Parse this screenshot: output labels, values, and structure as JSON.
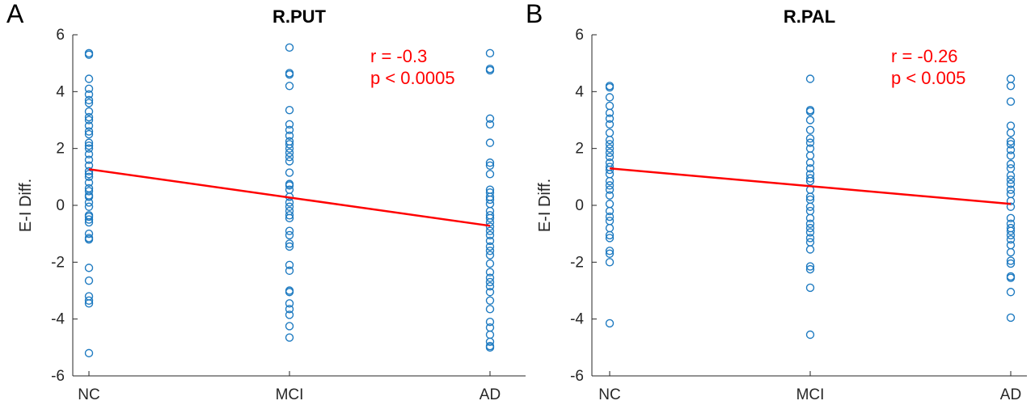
{
  "colors": {
    "marker": "#1f7bc1",
    "fit": "#ff0000",
    "stat": "#ff0000",
    "axis": "#262626"
  },
  "chart_data": [
    {
      "type": "scatter",
      "panel_label": "A",
      "title": "R.PUT",
      "ylabel": "E-I Diff.",
      "xlabel": "",
      "categories": [
        "NC",
        "MCI",
        "AD"
      ],
      "ylim": [
        -6,
        6
      ],
      "yticks": [
        -6,
        -4,
        -2,
        0,
        2,
        4,
        6
      ],
      "grid": false,
      "annotation": {
        "r": "r = -0.3",
        "p": "p < 0.0005"
      },
      "fit_line": {
        "from": [
          0,
          1.27
        ],
        "to": [
          2,
          -0.72
        ]
      },
      "series": [
        {
          "category": "NC",
          "values": [
            5.35,
            5.3,
            4.45,
            4.1,
            3.9,
            3.7,
            3.6,
            3.3,
            3.1,
            3.0,
            2.8,
            2.6,
            2.5,
            2.2,
            2.1,
            2.0,
            1.8,
            1.6,
            1.4,
            1.2,
            1.1,
            1.0,
            0.8,
            0.6,
            0.5,
            0.35,
            0.3,
            0.1,
            -0.05,
            -0.35,
            -0.4,
            -0.5,
            -0.6,
            -1.0,
            -1.15,
            -1.2,
            -2.2,
            -2.65,
            -3.2,
            -3.35,
            -3.45,
            -5.2
          ]
        },
        {
          "category": "MCI",
          "values": [
            5.55,
            4.65,
            4.6,
            4.2,
            3.35,
            2.85,
            2.65,
            2.45,
            2.25,
            2.15,
            2.0,
            1.85,
            1.7,
            1.55,
            1.15,
            0.75,
            0.7,
            0.55,
            0.3,
            0.1,
            -0.05,
            -0.2,
            -0.35,
            -0.45,
            -0.9,
            -1.05,
            -1.35,
            -1.45,
            -2.1,
            -2.3,
            -3.0,
            -3.05,
            -3.45,
            -3.65,
            -3.85,
            -4.25,
            -4.65
          ]
        },
        {
          "category": "AD",
          "values": [
            5.35,
            4.8,
            4.75,
            3.05,
            2.85,
            2.2,
            1.5,
            1.4,
            1.1,
            0.55,
            0.45,
            0.3,
            0.2,
            0.05,
            -0.2,
            -0.35,
            -0.45,
            -0.6,
            -0.75,
            -0.9,
            -1.05,
            -1.25,
            -1.45,
            -1.6,
            -1.75,
            -2.05,
            -2.35,
            -2.55,
            -2.7,
            -2.85,
            -3.05,
            -3.35,
            -3.65,
            -4.1,
            -4.3,
            -4.55,
            -4.8,
            -4.95,
            -5.0
          ]
        }
      ]
    },
    {
      "type": "scatter",
      "panel_label": "B",
      "title": "R.PAL",
      "ylabel": "E-I Diff.",
      "xlabel": "",
      "categories": [
        "NC",
        "MCI",
        "AD"
      ],
      "ylim": [
        -6,
        6
      ],
      "yticks": [
        -6,
        -4,
        -2,
        0,
        2,
        4,
        6
      ],
      "grid": false,
      "annotation": {
        "r": "r = -0.26",
        "p": "p < 0.005"
      },
      "fit_line": {
        "from": [
          0,
          1.3
        ],
        "to": [
          2,
          0.05
        ]
      },
      "series": [
        {
          "category": "NC",
          "values": [
            4.2,
            4.15,
            3.8,
            3.5,
            3.25,
            3.05,
            2.85,
            2.55,
            2.3,
            2.15,
            2.0,
            1.85,
            1.7,
            1.5,
            1.35,
            1.25,
            1.1,
            0.85,
            0.7,
            0.55,
            0.35,
            0.05,
            -0.2,
            -0.4,
            -0.55,
            -0.8,
            -1.05,
            -1.15,
            -1.6,
            -1.7,
            -2.0,
            -4.15
          ]
        },
        {
          "category": "MCI",
          "values": [
            4.45,
            3.35,
            3.3,
            3.0,
            2.65,
            2.35,
            2.2,
            2.0,
            1.75,
            1.5,
            1.3,
            1.1,
            0.95,
            0.85,
            0.55,
            0.3,
            0.2,
            -0.05,
            -0.2,
            -0.45,
            -0.65,
            -0.8,
            -0.95,
            -1.15,
            -1.3,
            -1.55,
            -2.15,
            -2.25,
            -2.9,
            -4.55
          ]
        },
        {
          "category": "AD",
          "values": [
            4.45,
            4.2,
            3.65,
            2.8,
            2.55,
            2.25,
            2.15,
            1.95,
            1.75,
            1.45,
            1.3,
            1.05,
            0.9,
            0.75,
            0.55,
            0.4,
            0.15,
            -0.05,
            -0.45,
            -0.65,
            -0.8,
            -0.9,
            -1.05,
            -1.2,
            -1.4,
            -1.65,
            -1.95,
            -2.05,
            -2.5,
            -2.55,
            -3.05,
            -3.95
          ]
        }
      ]
    }
  ]
}
